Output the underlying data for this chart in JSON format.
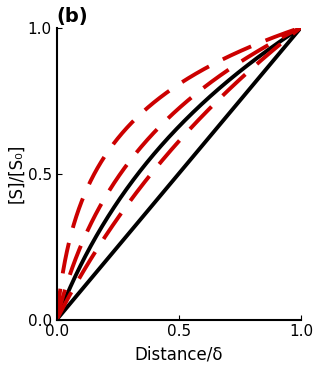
{
  "title": "(b)",
  "xlabel": "Distance/δ",
  "ylabel": "[S]/[S₀]",
  "xlim": [
    0,
    1.0
  ],
  "ylim": [
    0,
    1.0
  ],
  "xticks": [
    0,
    0.5,
    1.0
  ],
  "yticks": [
    0,
    0.5,
    1.0
  ],
  "curves": [
    {
      "type": "black",
      "style": "solid",
      "color": "#000000",
      "lw": 2.8,
      "alpha": 1.0,
      "kind": "linear"
    },
    {
      "type": "black",
      "style": "solid",
      "color": "#000000",
      "lw": 2.8,
      "alpha": 1.0,
      "kind": "log",
      "R_ratio": 4.0
    },
    {
      "type": "red",
      "style": "dashed",
      "color": "#cc0000",
      "lw": 2.8,
      "alpha": 1.0,
      "kind": "log",
      "R_ratio": 30.0
    },
    {
      "type": "red",
      "style": "dashed",
      "color": "#cc0000",
      "lw": 2.8,
      "alpha": 1.0,
      "kind": "log",
      "R_ratio": 8.0
    },
    {
      "type": "red",
      "style": "dashed",
      "color": "#cc0000",
      "lw": 2.8,
      "alpha": 1.0,
      "kind": "log",
      "R_ratio": 2.5
    }
  ],
  "background_color": "#ffffff",
  "title_fontsize": 14,
  "label_fontsize": 12,
  "tick_fontsize": 11,
  "dash_pattern": [
    8,
    4
  ]
}
